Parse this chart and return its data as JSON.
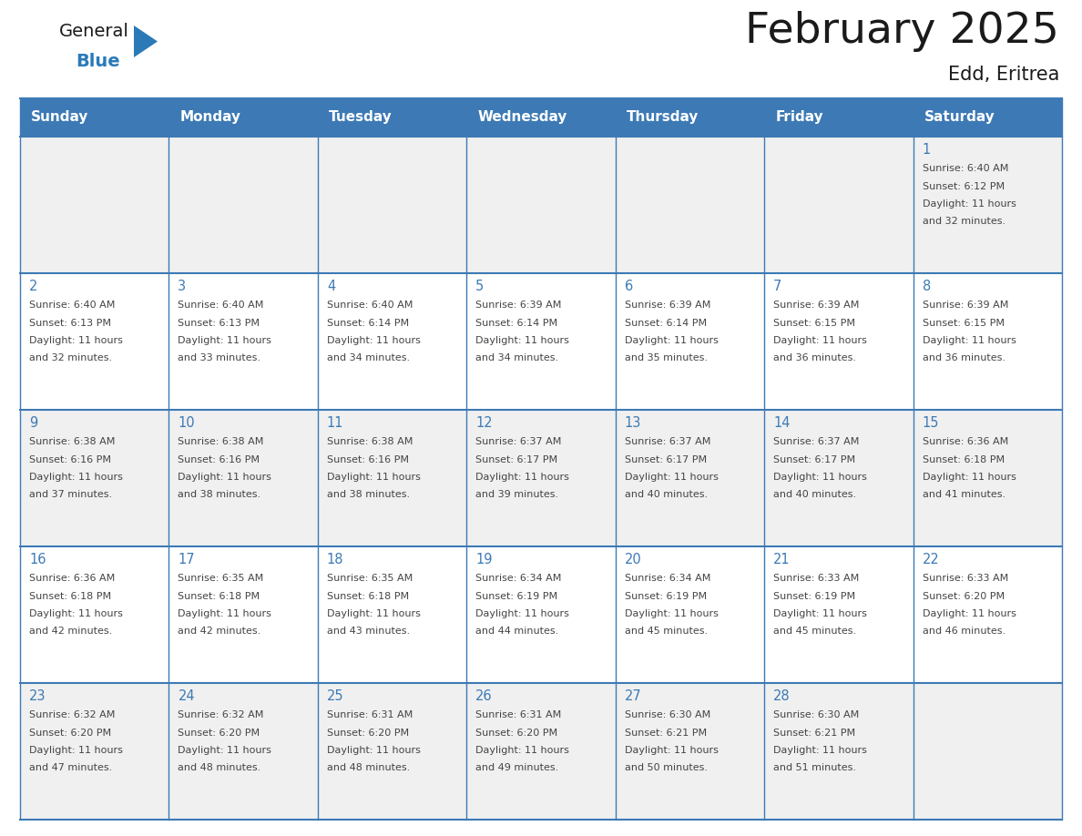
{
  "title": "February 2025",
  "subtitle": "Edd, Eritrea",
  "days_of_week": [
    "Sunday",
    "Monday",
    "Tuesday",
    "Wednesday",
    "Thursday",
    "Friday",
    "Saturday"
  ],
  "header_bg": "#3d7ab5",
  "header_text": "#ffffff",
  "row_bg_even": "#f0f0f0",
  "row_bg_odd": "#ffffff",
  "cell_border": "#3d7ab5",
  "day_number_color": "#3d7ab5",
  "text_color": "#444444",
  "calendar_data": [
    [
      null,
      null,
      null,
      null,
      null,
      null,
      {
        "day": 1,
        "sunrise": "6:40 AM",
        "sunset": "6:12 PM",
        "daylight_hours": 11,
        "daylight_minutes": 32
      }
    ],
    [
      {
        "day": 2,
        "sunrise": "6:40 AM",
        "sunset": "6:13 PM",
        "daylight_hours": 11,
        "daylight_minutes": 32
      },
      {
        "day": 3,
        "sunrise": "6:40 AM",
        "sunset": "6:13 PM",
        "daylight_hours": 11,
        "daylight_minutes": 33
      },
      {
        "day": 4,
        "sunrise": "6:40 AM",
        "sunset": "6:14 PM",
        "daylight_hours": 11,
        "daylight_minutes": 34
      },
      {
        "day": 5,
        "sunrise": "6:39 AM",
        "sunset": "6:14 PM",
        "daylight_hours": 11,
        "daylight_minutes": 34
      },
      {
        "day": 6,
        "sunrise": "6:39 AM",
        "sunset": "6:14 PM",
        "daylight_hours": 11,
        "daylight_minutes": 35
      },
      {
        "day": 7,
        "sunrise": "6:39 AM",
        "sunset": "6:15 PM",
        "daylight_hours": 11,
        "daylight_minutes": 36
      },
      {
        "day": 8,
        "sunrise": "6:39 AM",
        "sunset": "6:15 PM",
        "daylight_hours": 11,
        "daylight_minutes": 36
      }
    ],
    [
      {
        "day": 9,
        "sunrise": "6:38 AM",
        "sunset": "6:16 PM",
        "daylight_hours": 11,
        "daylight_minutes": 37
      },
      {
        "day": 10,
        "sunrise": "6:38 AM",
        "sunset": "6:16 PM",
        "daylight_hours": 11,
        "daylight_minutes": 38
      },
      {
        "day": 11,
        "sunrise": "6:38 AM",
        "sunset": "6:16 PM",
        "daylight_hours": 11,
        "daylight_minutes": 38
      },
      {
        "day": 12,
        "sunrise": "6:37 AM",
        "sunset": "6:17 PM",
        "daylight_hours": 11,
        "daylight_minutes": 39
      },
      {
        "day": 13,
        "sunrise": "6:37 AM",
        "sunset": "6:17 PM",
        "daylight_hours": 11,
        "daylight_minutes": 40
      },
      {
        "day": 14,
        "sunrise": "6:37 AM",
        "sunset": "6:17 PM",
        "daylight_hours": 11,
        "daylight_minutes": 40
      },
      {
        "day": 15,
        "sunrise": "6:36 AM",
        "sunset": "6:18 PM",
        "daylight_hours": 11,
        "daylight_minutes": 41
      }
    ],
    [
      {
        "day": 16,
        "sunrise": "6:36 AM",
        "sunset": "6:18 PM",
        "daylight_hours": 11,
        "daylight_minutes": 42
      },
      {
        "day": 17,
        "sunrise": "6:35 AM",
        "sunset": "6:18 PM",
        "daylight_hours": 11,
        "daylight_minutes": 42
      },
      {
        "day": 18,
        "sunrise": "6:35 AM",
        "sunset": "6:18 PM",
        "daylight_hours": 11,
        "daylight_minutes": 43
      },
      {
        "day": 19,
        "sunrise": "6:34 AM",
        "sunset": "6:19 PM",
        "daylight_hours": 11,
        "daylight_minutes": 44
      },
      {
        "day": 20,
        "sunrise": "6:34 AM",
        "sunset": "6:19 PM",
        "daylight_hours": 11,
        "daylight_minutes": 45
      },
      {
        "day": 21,
        "sunrise": "6:33 AM",
        "sunset": "6:19 PM",
        "daylight_hours": 11,
        "daylight_minutes": 45
      },
      {
        "day": 22,
        "sunrise": "6:33 AM",
        "sunset": "6:20 PM",
        "daylight_hours": 11,
        "daylight_minutes": 46
      }
    ],
    [
      {
        "day": 23,
        "sunrise": "6:32 AM",
        "sunset": "6:20 PM",
        "daylight_hours": 11,
        "daylight_minutes": 47
      },
      {
        "day": 24,
        "sunrise": "6:32 AM",
        "sunset": "6:20 PM",
        "daylight_hours": 11,
        "daylight_minutes": 48
      },
      {
        "day": 25,
        "sunrise": "6:31 AM",
        "sunset": "6:20 PM",
        "daylight_hours": 11,
        "daylight_minutes": 48
      },
      {
        "day": 26,
        "sunrise": "6:31 AM",
        "sunset": "6:20 PM",
        "daylight_hours": 11,
        "daylight_minutes": 49
      },
      {
        "day": 27,
        "sunrise": "6:30 AM",
        "sunset": "6:21 PM",
        "daylight_hours": 11,
        "daylight_minutes": 50
      },
      {
        "day": 28,
        "sunrise": "6:30 AM",
        "sunset": "6:21 PM",
        "daylight_hours": 11,
        "daylight_minutes": 51
      },
      null
    ]
  ],
  "logo_color_general": "#1a1a1a",
  "logo_color_blue": "#2a7ab8",
  "logo_triangle_color": "#2a7ab8",
  "fig_width": 11.88,
  "fig_height": 9.18,
  "dpi": 100
}
